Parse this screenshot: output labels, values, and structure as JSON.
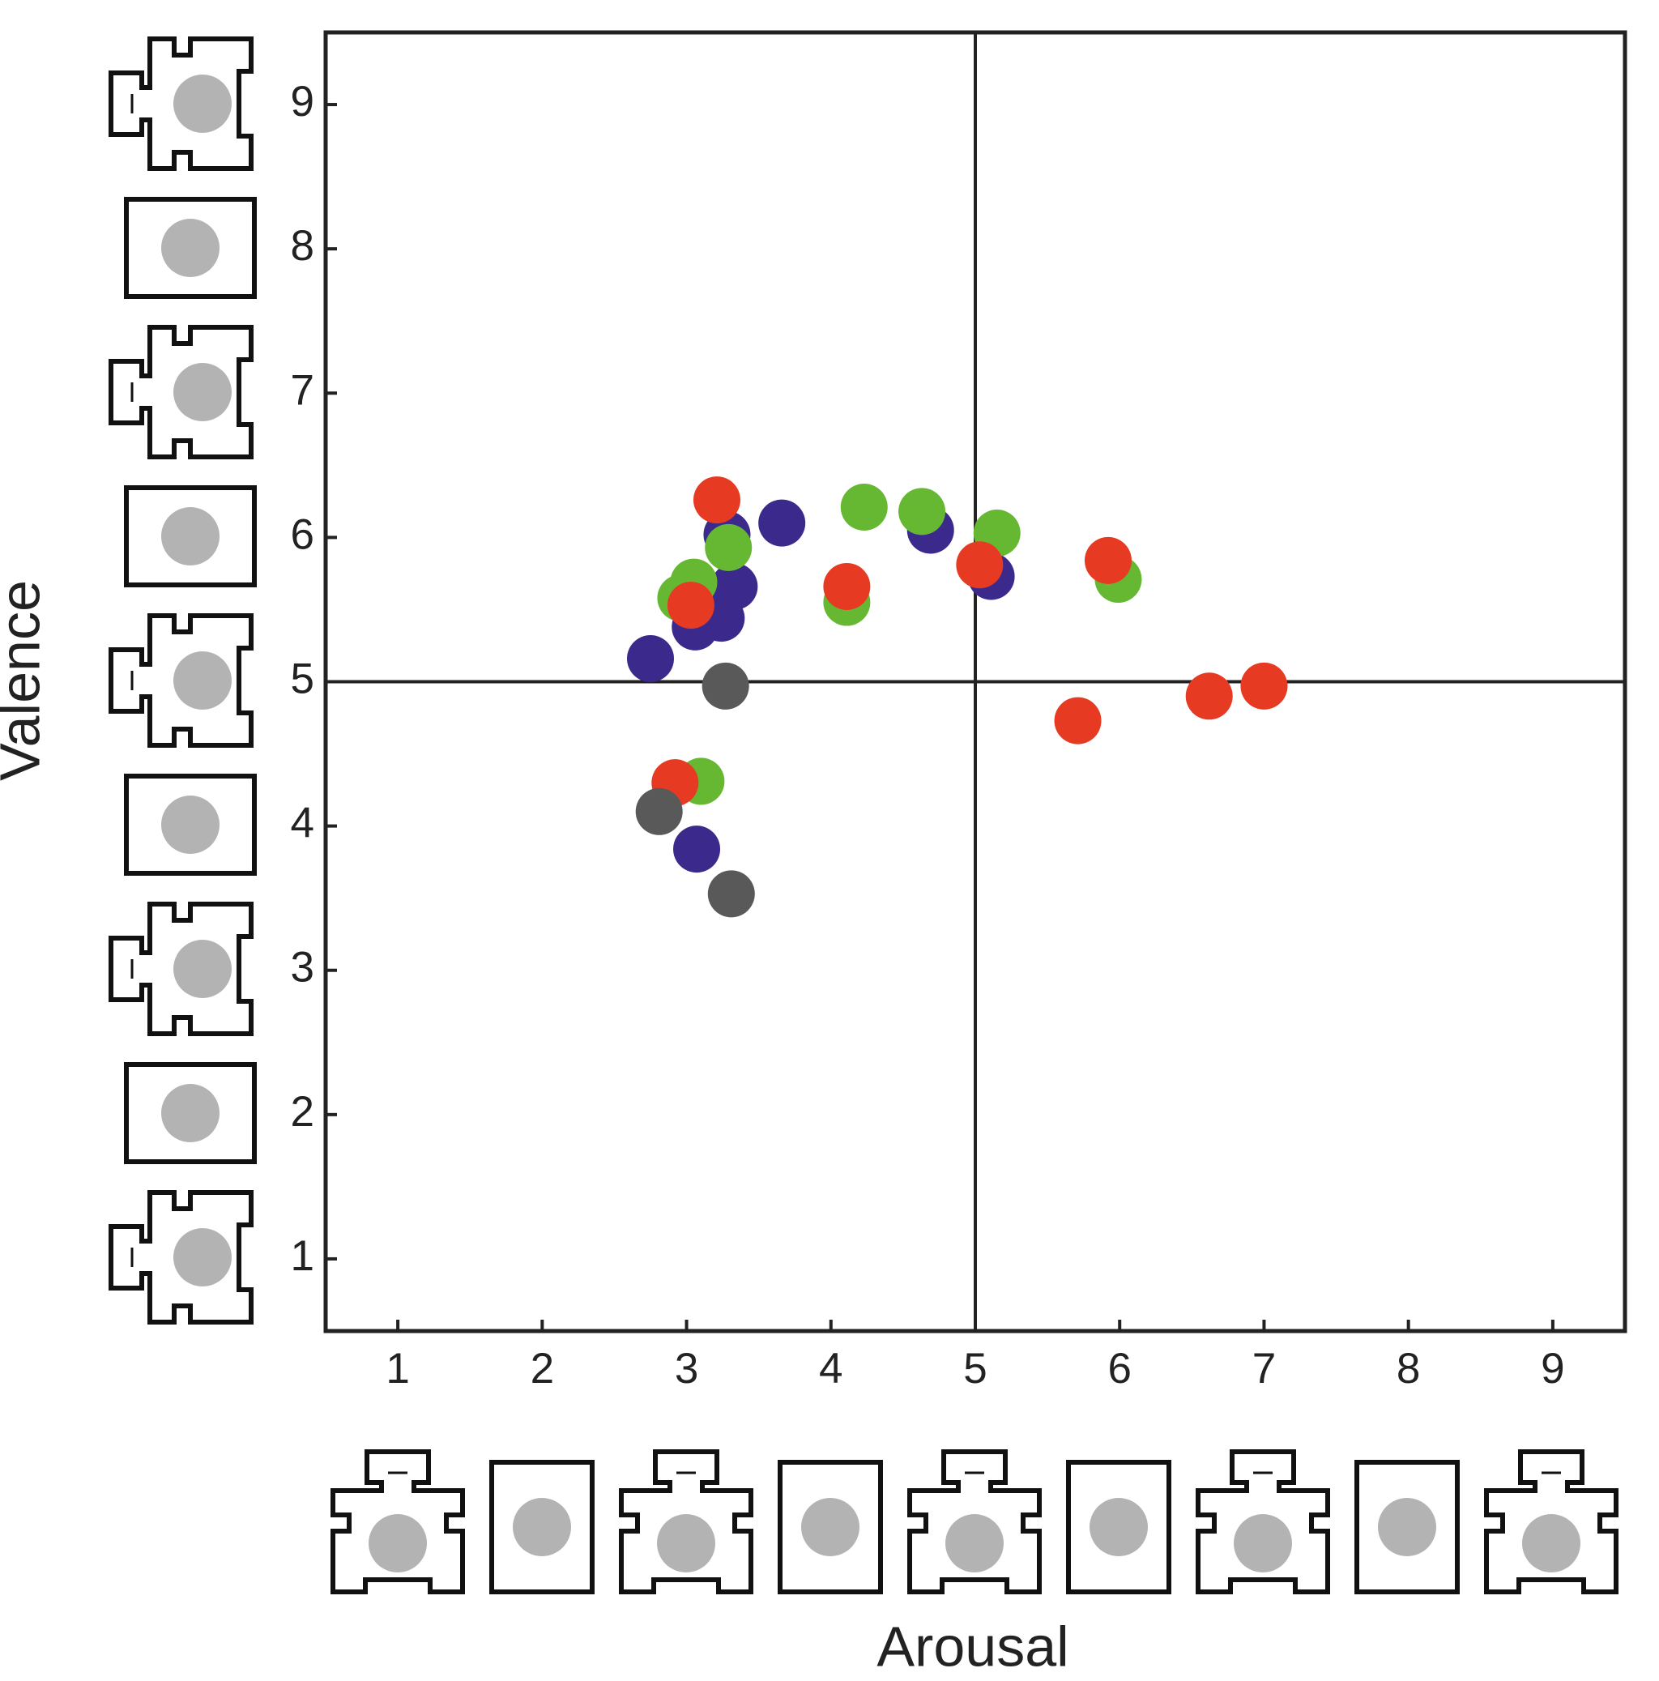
{
  "chart_data": {
    "type": "scatter",
    "xlabel": "Arousal",
    "ylabel": "Valence",
    "xlim": [
      0.5,
      9.5
    ],
    "ylim": [
      0.5,
      9.5
    ],
    "xticks": [
      1,
      2,
      3,
      4,
      5,
      6,
      7,
      8,
      9
    ],
    "yticks": [
      1,
      2,
      3,
      4,
      5,
      6,
      7,
      8,
      9
    ],
    "reference_lines": {
      "x": 5,
      "y": 5
    },
    "series": [
      {
        "color": "#3b2a8c",
        "x": [
          3.28,
          3.66,
          4.69,
          5.11,
          3.33,
          3.24,
          3.06,
          2.75,
          3.07
        ],
        "y": [
          6.02,
          6.1,
          6.05,
          5.73,
          5.66,
          5.44,
          5.38,
          5.16,
          3.84
        ]
      },
      {
        "color": "#66b832",
        "x": [
          4.23,
          4.63,
          5.15,
          3.29,
          3.05,
          2.96,
          4.11,
          5.99,
          3.1
        ],
        "y": [
          6.21,
          6.18,
          6.03,
          5.93,
          5.69,
          5.58,
          5.55,
          5.71,
          4.31
        ]
      },
      {
        "color": "#e63b22",
        "x": [
          3.21,
          4.11,
          5.03,
          5.92,
          3.03,
          2.92,
          5.71,
          6.62,
          7.0
        ],
        "y": [
          6.26,
          5.66,
          5.81,
          5.84,
          5.53,
          4.3,
          4.73,
          4.9,
          4.97
        ]
      },
      {
        "color": "#595959",
        "x": [
          3.27,
          2.81,
          3.31
        ],
        "y": [
          4.97,
          4.1,
          3.53
        ]
      }
    ]
  }
}
